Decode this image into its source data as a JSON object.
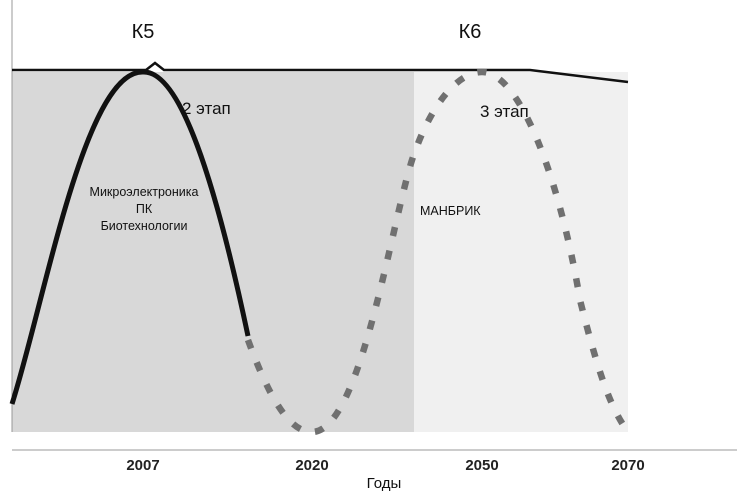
{
  "chart_data": {
    "type": "line",
    "title": "",
    "xlabel": "Годы",
    "ylabel": "",
    "x_ticks": [
      "2007",
      "2020",
      "2050",
      "2070"
    ],
    "waves": [
      {
        "name": "К5",
        "stage": "2 этап",
        "technologies": [
          "Микроэлектроника",
          "ПК",
          "Биотехнологии"
        ],
        "peak": "2007",
        "style": "solid"
      },
      {
        "name": "К6",
        "stage": "3 этап",
        "technologies": [
          "МАНБРИК"
        ],
        "peak": "2050",
        "style": "dotted"
      }
    ],
    "colors": {
      "k5_region": "#d8d8d8",
      "k6_region": "#f0f0f0",
      "k5_curve": "#111111",
      "k6_curve": "#707070",
      "envelope": "#111111"
    },
    "grid": false
  }
}
